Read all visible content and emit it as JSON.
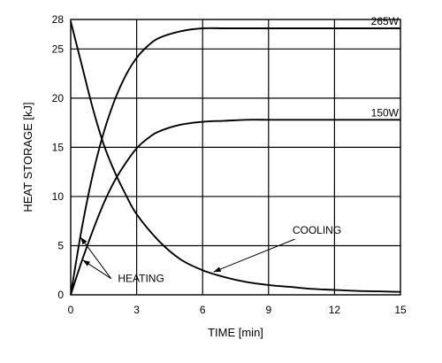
{
  "chart_data": {
    "type": "line",
    "title": "",
    "xlabel": "TIME  [min]",
    "ylabel": "HEAT STORAGE  [kJ]",
    "xlim": [
      0,
      15
    ],
    "ylim": [
      0,
      28
    ],
    "x_ticks": [
      0,
      3,
      6,
      9,
      12,
      15
    ],
    "y_ticks": [
      0,
      5,
      10,
      15,
      20,
      25,
      28
    ],
    "grid": true,
    "series": [
      {
        "name": "265W",
        "x": [
          0,
          0.5,
          1,
          1.5,
          2,
          2.5,
          3,
          3.5,
          4,
          5,
          6,
          7,
          8,
          9,
          10,
          11,
          12,
          13,
          14,
          15
        ],
        "values": [
          0,
          6.7,
          12.2,
          16.5,
          19.8,
          22.3,
          24.1,
          25.3,
          26.1,
          26.8,
          27.1,
          27.1,
          27.1,
          27.1,
          27.1,
          27.1,
          27.1,
          27.1,
          27.1,
          27.1
        ]
      },
      {
        "name": "150W",
        "x": [
          0,
          0.5,
          1,
          1.5,
          2,
          2.5,
          3,
          3.5,
          4,
          5,
          6,
          7,
          8,
          9,
          10,
          11,
          12,
          13,
          14,
          15
        ],
        "values": [
          0,
          3.4,
          6.5,
          9.3,
          11.6,
          13.4,
          14.9,
          15.9,
          16.6,
          17.3,
          17.6,
          17.7,
          17.8,
          17.8,
          17.8,
          17.8,
          17.8,
          17.8,
          17.8,
          17.8
        ]
      },
      {
        "name": "COOLING",
        "x": [
          0,
          0.5,
          1,
          1.5,
          2,
          2.5,
          3,
          4,
          5,
          6,
          7,
          8,
          9,
          10,
          11,
          12,
          13,
          14,
          15
        ],
        "values": [
          27.8,
          23.4,
          19.0,
          15.3,
          12.5,
          10.2,
          8.2,
          5.5,
          3.6,
          2.5,
          1.8,
          1.3,
          1.0,
          0.8,
          0.6,
          0.5,
          0.4,
          0.35,
          0.3
        ]
      }
    ],
    "annotations": [
      {
        "text": "265W",
        "series": "265W"
      },
      {
        "text": "150W",
        "series": "150W"
      },
      {
        "text": "COOLING",
        "series": "COOLING"
      },
      {
        "text": "HEATING",
        "series": "heating"
      }
    ]
  }
}
